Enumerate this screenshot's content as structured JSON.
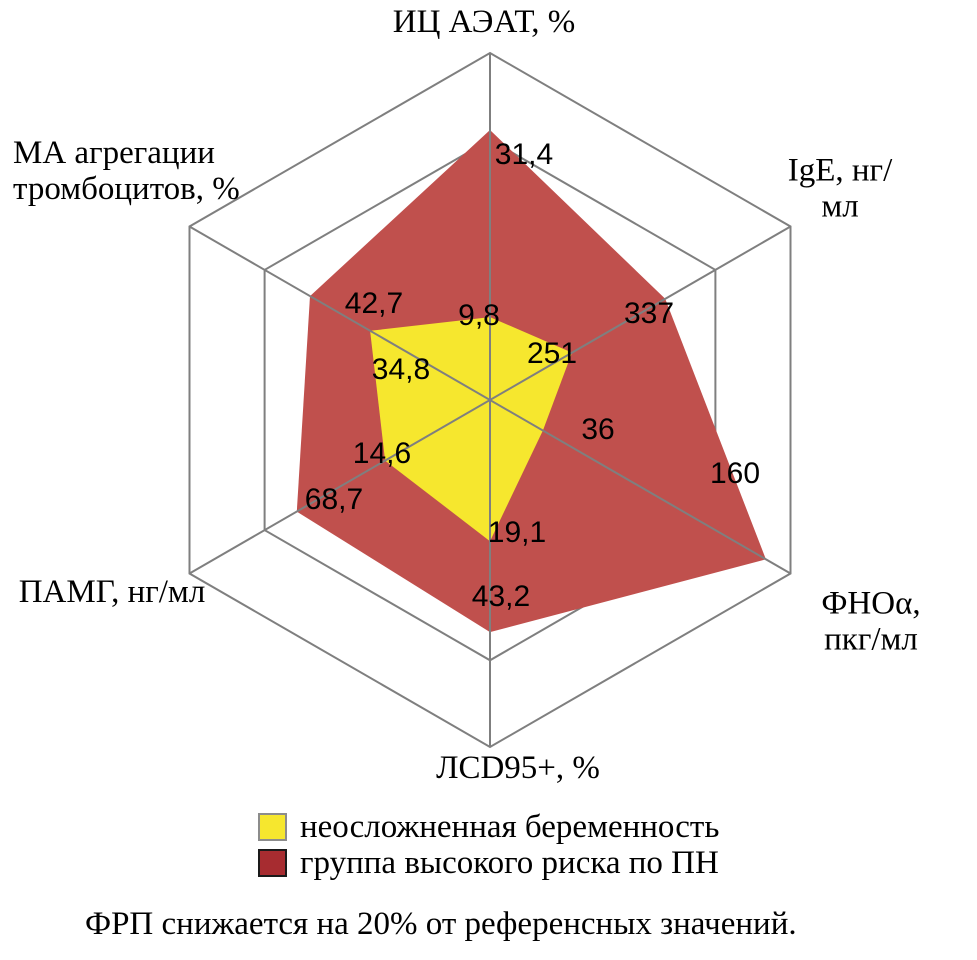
{
  "figure": {
    "footnote": "ФРП снижается на 20% от референсных значений.",
    "legend": [
      {
        "label": "неосложненная беременность",
        "swatch_color": "#F6E72E"
      },
      {
        "label": "группа высокого риска по ПН",
        "swatch_color": "#A72C30"
      }
    ]
  },
  "chart_data": {
    "type": "radar",
    "grid": {
      "shape": "hexagon",
      "rings": [
        1,
        0.75
      ],
      "line_color": "#7F7F7F"
    },
    "axes": [
      {
        "label": "ИЦ АЭАТ, %"
      },
      {
        "label": "IgE, нг/мл"
      },
      {
        "label": "ФНОα, пкг/мл"
      },
      {
        "label": "ЛCD95+, %"
      },
      {
        "label": "ПАМГ, нг/мл"
      },
      {
        "label": "МА агрегации\nтромбоцитов, %"
      }
    ],
    "series": [
      {
        "name": "группа высокого риска по ПН",
        "color": "#C0504D",
        "values": [
          31.4,
          337,
          160,
          43.2,
          68.7,
          42.7
        ],
        "display": [
          "31,4",
          "337",
          "160",
          "43,2",
          "68,7",
          "42,7"
        ],
        "radial_fractions": [
          0.778,
          0.583,
          0.918,
          0.669,
          0.643,
          0.599
        ]
      },
      {
        "name": "неосложненная беременность",
        "color": "#F6E72E",
        "values": [
          9.8,
          251,
          36,
          19.1,
          14.6,
          34.8
        ],
        "display": [
          "9,8",
          "251",
          "36",
          "19,1",
          "14,6",
          "34,8"
        ],
        "radial_fractions": [
          0.239,
          0.273,
          0.176,
          0.407,
          0.349,
          0.399
        ]
      }
    ]
  }
}
